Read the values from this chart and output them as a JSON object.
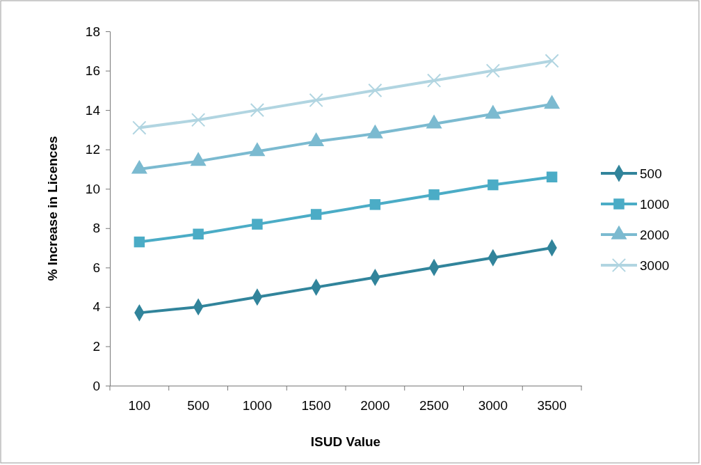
{
  "chart_data": {
    "type": "line",
    "xlabel": "ISUD Value",
    "ylabel": "% Increase in Licences",
    "categories": [
      "100",
      "500",
      "1000",
      "1500",
      "2000",
      "2500",
      "3000",
      "3500"
    ],
    "ylim": [
      0,
      18
    ],
    "yticks": [
      0,
      2,
      4,
      6,
      8,
      10,
      12,
      14,
      16,
      18
    ],
    "grid": false,
    "legend": "right",
    "line_style": "solid",
    "series": [
      {
        "name": "500",
        "color": "#31849b",
        "marker": "diamond",
        "values": [
          3.7,
          4.0,
          4.5,
          5.0,
          5.5,
          6.0,
          6.5,
          7.0
        ]
      },
      {
        "name": "1000",
        "color": "#4bacc6",
        "marker": "square",
        "values": [
          7.3,
          7.7,
          8.2,
          8.7,
          9.2,
          9.7,
          10.2,
          10.6
        ]
      },
      {
        "name": "2000",
        "color": "#7bbad0",
        "marker": "triangle",
        "values": [
          11.0,
          11.4,
          11.9,
          12.4,
          12.8,
          13.3,
          13.8,
          14.3
        ]
      },
      {
        "name": "3000",
        "color": "#b1d5e1",
        "marker": "cross",
        "values": [
          13.1,
          13.5,
          14.0,
          14.5,
          15.0,
          15.5,
          16.0,
          16.5
        ]
      }
    ]
  }
}
